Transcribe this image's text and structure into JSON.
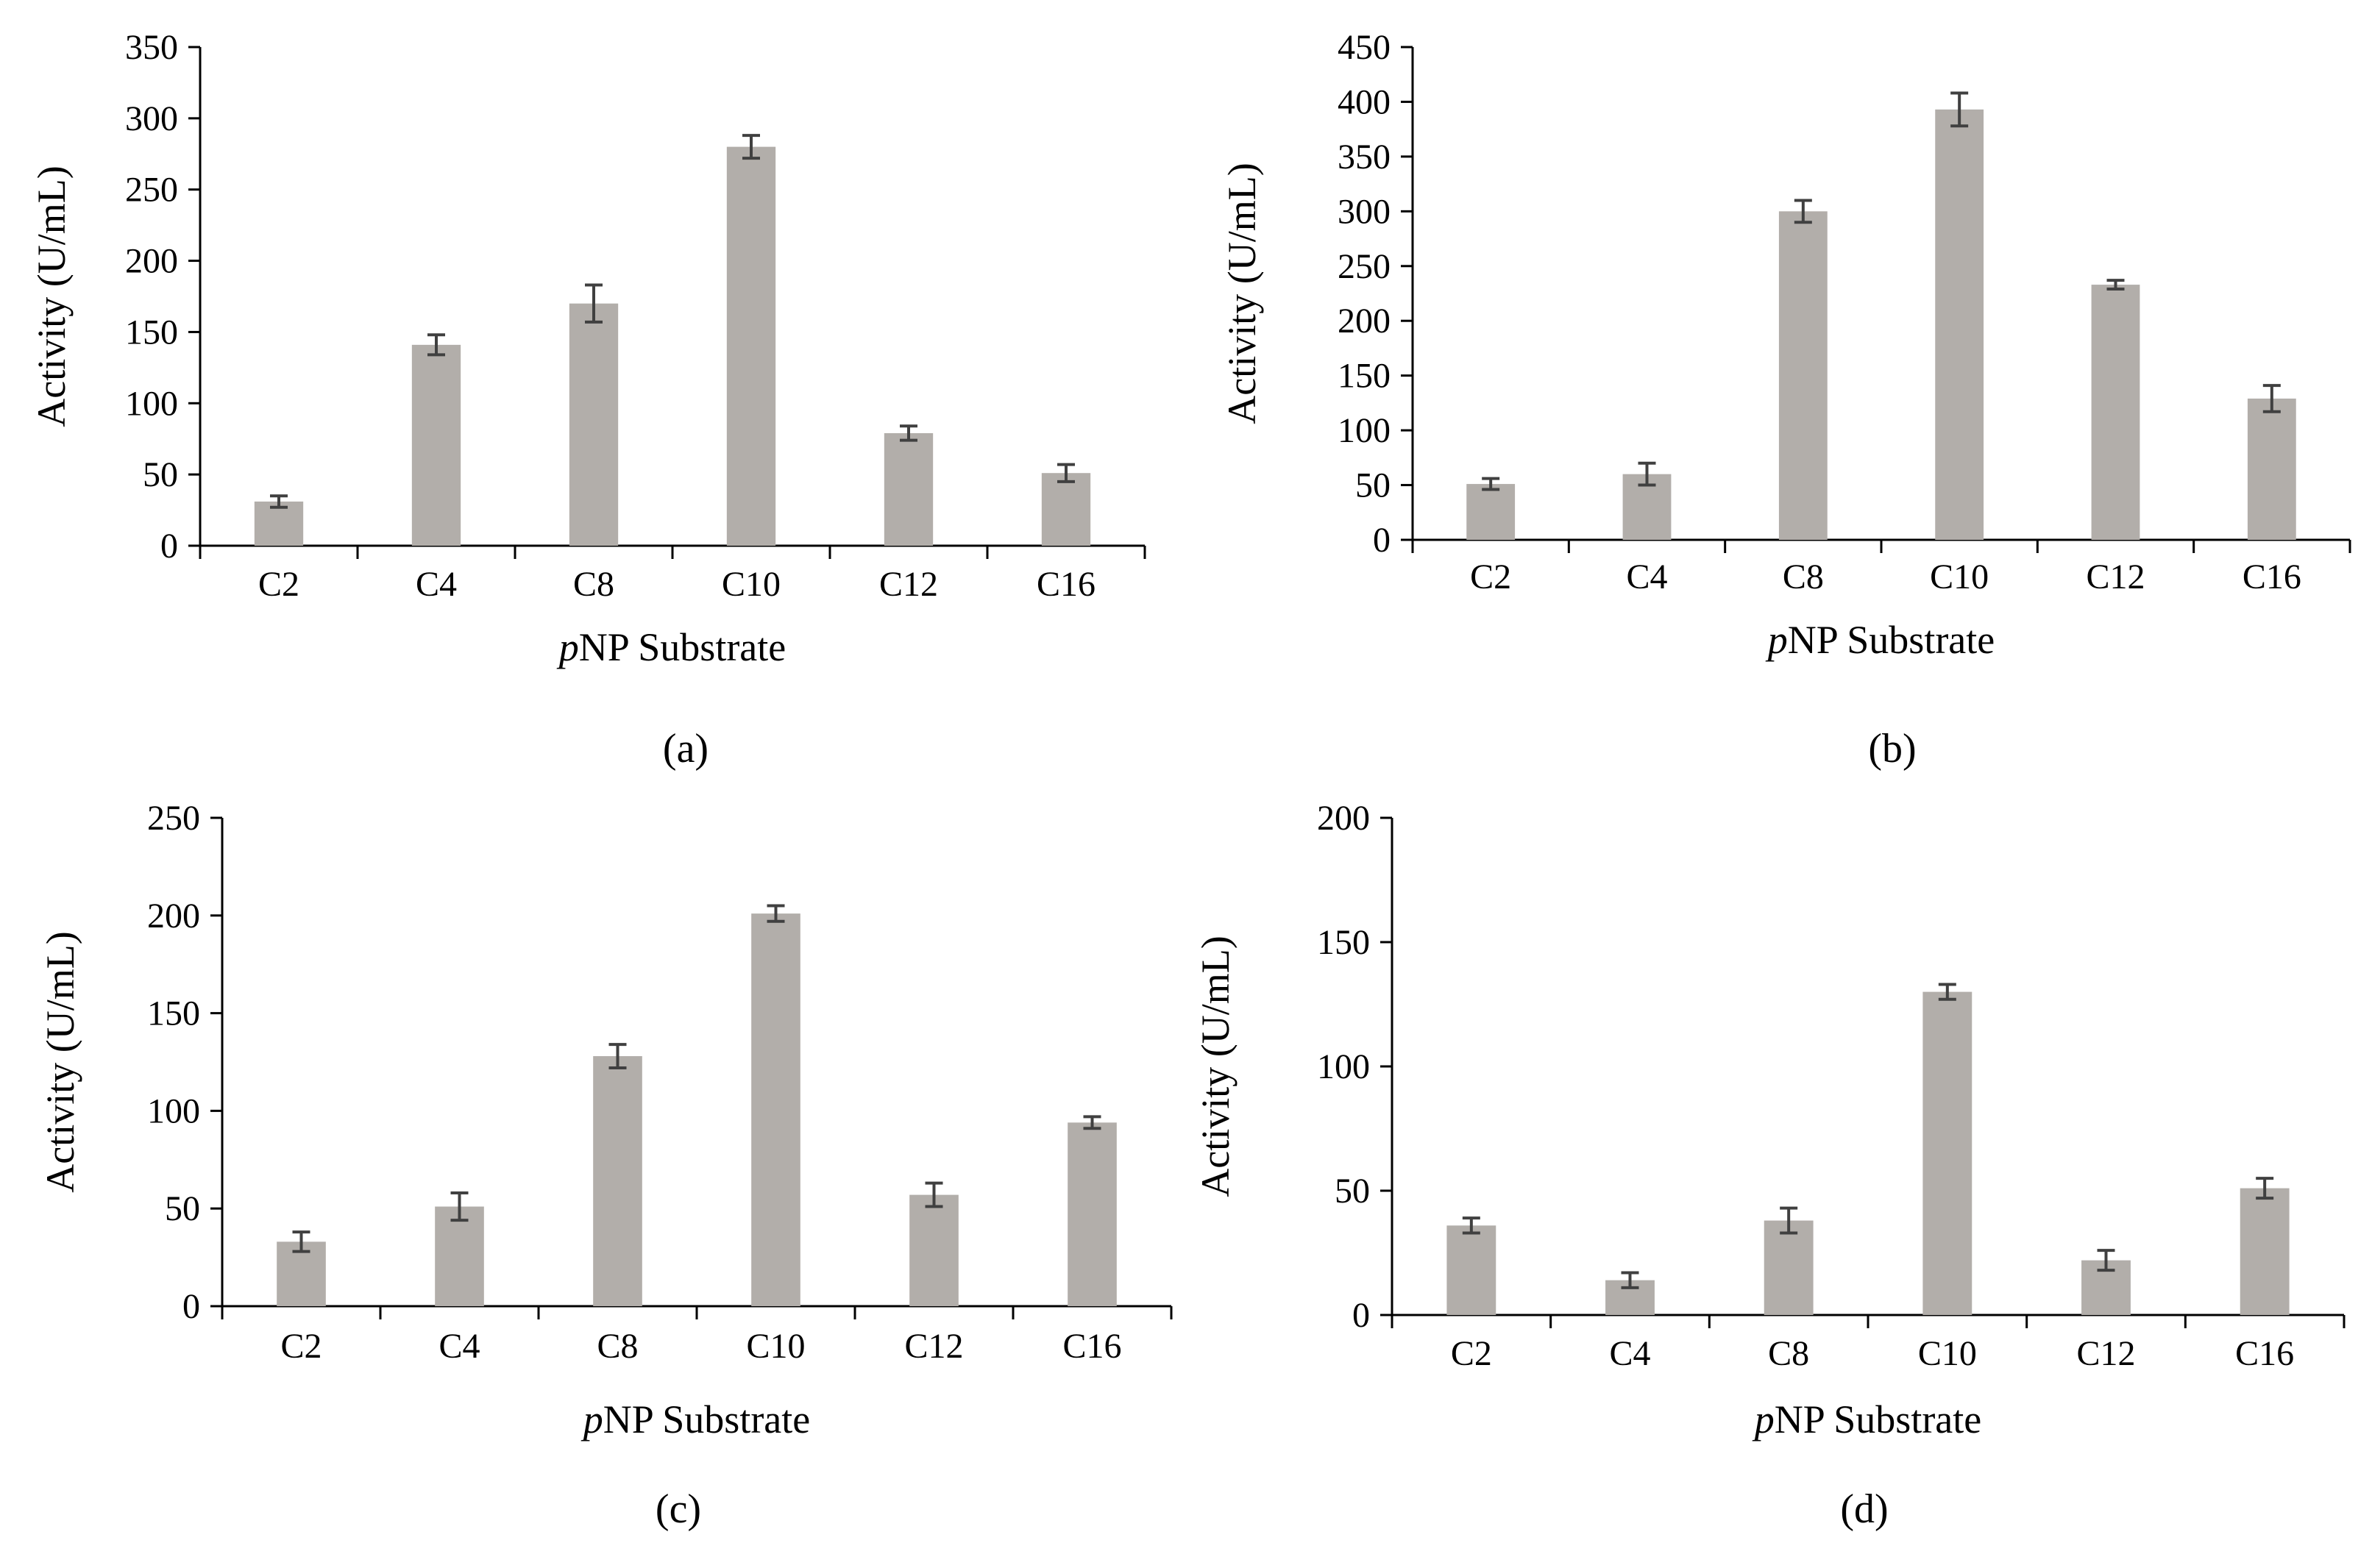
{
  "figure": {
    "bar_color": "#b2aeaa",
    "axis_color": "#000000",
    "errorbar_color": "#404040"
  },
  "chart_data": [
    {
      "panel": "(a)",
      "type": "bar",
      "categories": [
        "C2",
        "C4",
        "C8",
        "C10",
        "C12",
        "C16"
      ],
      "values": [
        31,
        141,
        170,
        280,
        79,
        51
      ],
      "errors": [
        4,
        7,
        13,
        8,
        5,
        6
      ],
      "ylim": [
        0,
        350
      ],
      "yticks": [
        0,
        50,
        100,
        150,
        200,
        250,
        300,
        350
      ],
      "ylabel": "Activity (U/mL)",
      "xlabel_italic": "p",
      "xlabel_rest": "NP Substrate",
      "grid": false
    },
    {
      "panel": "(b)",
      "type": "bar",
      "categories": [
        "C2",
        "C4",
        "C8",
        "C10",
        "C12",
        "C16"
      ],
      "values": [
        51,
        60,
        300,
        393,
        233,
        129
      ],
      "errors": [
        5,
        10,
        10,
        15,
        4,
        12
      ],
      "ylim": [
        0,
        450
      ],
      "yticks": [
        0,
        50,
        100,
        150,
        200,
        250,
        300,
        350,
        400,
        450
      ],
      "ylabel": "Activity (U/mL)",
      "xlabel_italic": "p",
      "xlabel_rest": "NP Substrate",
      "grid": false
    },
    {
      "panel": "(c)",
      "type": "bar",
      "categories": [
        "C2",
        "C4",
        "C8",
        "C10",
        "C12",
        "C16"
      ],
      "values": [
        33,
        51,
        128,
        201,
        57,
        94
      ],
      "errors": [
        5,
        7,
        6,
        4,
        6,
        3
      ],
      "ylim": [
        0,
        250
      ],
      "yticks": [
        0,
        50,
        100,
        150,
        200,
        250
      ],
      "ylabel": "Activity (U/mL)",
      "xlabel_italic": "p",
      "xlabel_rest": "NP Substrate",
      "grid": false
    },
    {
      "panel": "(d)",
      "type": "bar",
      "categories": [
        "C2",
        "C4",
        "C8",
        "C10",
        "C12",
        "C16"
      ],
      "values": [
        36,
        14,
        38,
        130,
        22,
        51
      ],
      "errors": [
        3,
        3,
        5,
        3,
        4,
        4
      ],
      "ylim": [
        0,
        200
      ],
      "yticks": [
        0,
        50,
        100,
        150,
        200
      ],
      "ylabel": "Activity (U/mL)",
      "xlabel_italic": "p",
      "xlabel_rest": "NP Substrate",
      "grid": false
    }
  ]
}
